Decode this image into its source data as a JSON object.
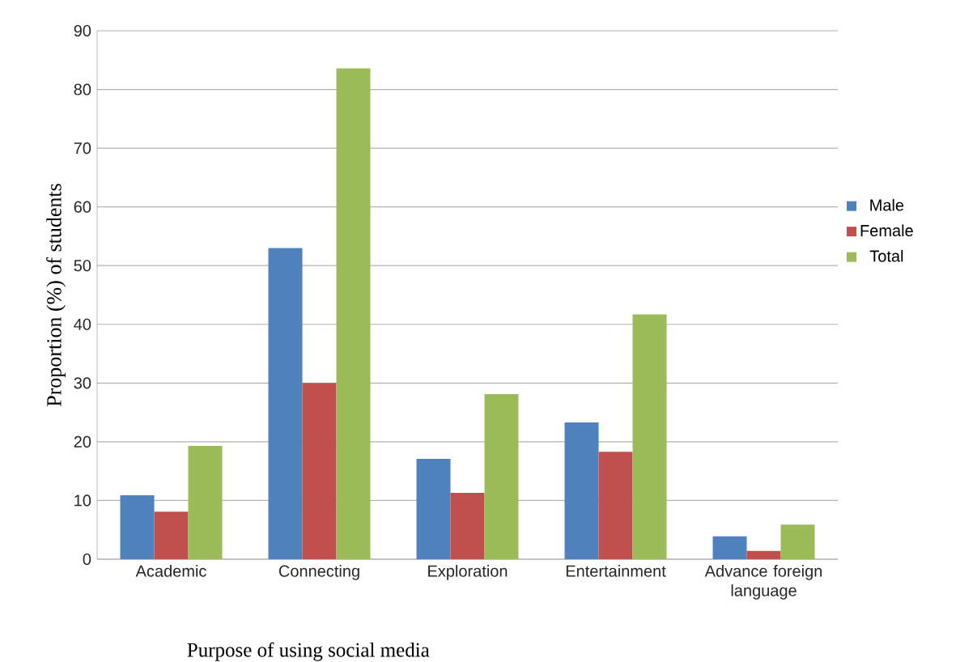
{
  "chart_data": {
    "type": "bar",
    "xlabel": "Purpose of using social media",
    "ylabel": "Proportion (%) of  students",
    "categories": [
      "Academic",
      "Connecting",
      "Exploration",
      "Entertainment",
      "Advance foreign language"
    ],
    "series": [
      {
        "name": "Male",
        "color": "#4f81bd",
        "values": [
          10.9,
          53.0,
          17.1,
          23.3,
          3.9
        ]
      },
      {
        "name": "Female",
        "color": "#c0504d",
        "values": [
          8.1,
          30.0,
          11.3,
          18.3,
          1.4
        ]
      },
      {
        "name": "Total",
        "color": "#9bbb59",
        "values": [
          19.3,
          83.6,
          28.1,
          41.7,
          5.9
        ]
      }
    ],
    "ylim": [
      0,
      90
    ],
    "yticks": [
      0,
      10,
      20,
      30,
      40,
      50,
      60,
      70,
      80,
      90
    ],
    "grid": "y",
    "legend": "right"
  }
}
